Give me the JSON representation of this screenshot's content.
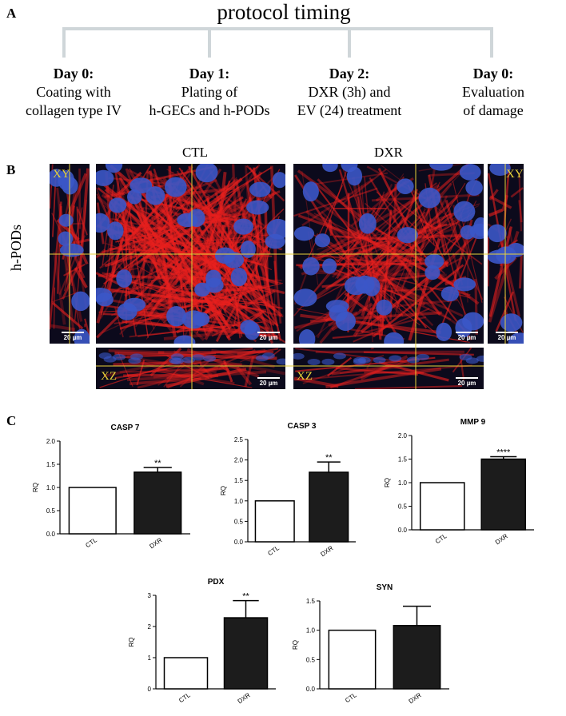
{
  "panel_a": {
    "label": "A",
    "title": "protocol timing",
    "steps": [
      {
        "day": "Day 0:",
        "lines": [
          "Coating with",
          "collagen type IV"
        ]
      },
      {
        "day": "Day 1:",
        "lines": [
          "Plating of",
          "h-GECs and h-PODs"
        ]
      },
      {
        "day": "Day 2:",
        "lines": [
          "DXR (3h) and",
          "EV (24) treatment"
        ]
      },
      {
        "day": "Day 0:",
        "lines": [
          "Evaluation",
          "of damage"
        ]
      }
    ]
  },
  "panel_b": {
    "label": "B",
    "columns": [
      "CTL",
      "DXR"
    ],
    "row_label": "h-PODs",
    "view_xy": "XY",
    "view_xz": "XZ",
    "scale_bar": "20 µm"
  },
  "panel_c": {
    "label": "C"
  },
  "chart_data": [
    {
      "type": "bar",
      "title": "CASP 7",
      "y_label": "RQ",
      "categories": [
        "CTL",
        "DXR"
      ],
      "values": [
        1.0,
        1.33
      ],
      "errors": [
        null,
        0.1
      ],
      "significance": [
        null,
        "**"
      ],
      "colors": [
        "#ffffff",
        "#1c1c1c"
      ],
      "ylim": [
        0,
        2
      ],
      "yticks": [
        {
          "value": 0,
          "label": "0.0"
        },
        {
          "value": 0.5,
          "label": "0.5"
        },
        {
          "value": 1,
          "label": "1.0"
        },
        {
          "value": 1.5,
          "label": "1.5"
        },
        {
          "value": 2,
          "label": "2.0"
        }
      ]
    },
    {
      "type": "bar",
      "title": "CASP 3",
      "y_label": "RQ",
      "categories": [
        "CTL",
        "DXR"
      ],
      "values": [
        1.0,
        1.7
      ],
      "errors": [
        null,
        0.25
      ],
      "significance": [
        null,
        "**"
      ],
      "colors": [
        "#ffffff",
        "#1c1c1c"
      ],
      "ylim": [
        0,
        2.5
      ],
      "yticks": [
        {
          "value": 0,
          "label": "0.0"
        },
        {
          "value": 0.5,
          "label": "0.5"
        },
        {
          "value": 1,
          "label": "1.0"
        },
        1.5,
        {
          "value": 2,
          "label": "2.0"
        },
        2.5
      ]
    },
    {
      "type": "bar",
      "title": "MMP 9",
      "y_label": "RQ",
      "categories": [
        "CTL",
        "DXR"
      ],
      "values": [
        1.0,
        1.5
      ],
      "errors": [
        null,
        0.05
      ],
      "significance": [
        null,
        "****"
      ],
      "colors": [
        "#ffffff",
        "#1c1c1c"
      ],
      "ylim": [
        0,
        2
      ],
      "yticks": [
        {
          "value": 0,
          "label": "0.0"
        },
        {
          "value": 0.5,
          "label": "0.5"
        },
        {
          "value": 1,
          "label": "1.0"
        },
        1.5,
        {
          "value": 2,
          "label": "2.0"
        }
      ]
    },
    {
      "type": "bar",
      "title": "PDX",
      "y_label": "RQ",
      "categories": [
        "CTL",
        "DXR"
      ],
      "values": [
        1,
        2.28
      ],
      "errors": [
        null,
        0.55
      ],
      "significance": [
        null,
        "**"
      ],
      "colors": [
        "#ffffff",
        "#1c1c1c"
      ],
      "ylim": [
        0,
        3
      ],
      "yticks": [
        0,
        1,
        2,
        3
      ]
    },
    {
      "type": "bar",
      "title": "SYN",
      "y_label": "RQ",
      "categories": [
        "CTL",
        "DXR"
      ],
      "values": [
        1.0,
        1.08
      ],
      "errors": [
        null,
        0.33
      ],
      "significance": [
        null,
        null
      ],
      "colors": [
        "#ffffff",
        "#1c1c1c"
      ],
      "ylim": [
        0,
        1.5
      ],
      "yticks": [
        {
          "value": 0,
          "label": "0.0"
        },
        {
          "value": 0.5,
          "label": "0.5"
        },
        {
          "value": 1,
          "label": "1.0"
        },
        1.5
      ]
    }
  ]
}
